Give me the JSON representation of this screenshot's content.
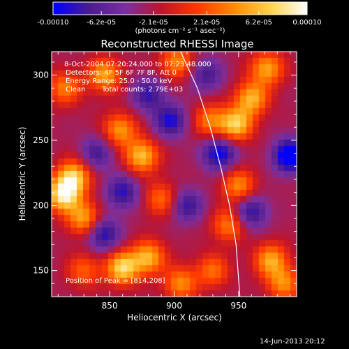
{
  "colorbar": {
    "tick_labels": [
      "-0.00010",
      "-6.2e-05",
      "-2.1e-05",
      "2.1e-05",
      "6.2e-05",
      "0.00010"
    ],
    "tick_values": [
      -0.0001,
      -6.2e-05,
      -2.1e-05,
      2.1e-05,
      6.2e-05,
      0.0001
    ],
    "unit_label": "(photons cm⁻² s⁻¹ asec⁻²)",
    "colors": [
      "#0000ff",
      "#4b1c8f",
      "#7a2fa0",
      "#c0142a",
      "#ff3a00",
      "#ff8c00",
      "#ffd34d",
      "#ffffff"
    ]
  },
  "chart_data": {
    "type": "heatmap",
    "title": "Reconstructed RHESSI Image",
    "xlabel": "Heliocentric X (arcsec)",
    "ylabel": "Heliocentric Y (arcsec)",
    "xlim": [
      805,
      995
    ],
    "ylim": [
      130,
      318
    ],
    "xticks": [
      850,
      900,
      950
    ],
    "yticks": [
      150,
      200,
      250,
      300
    ],
    "xtick_labels": [
      "850",
      "900",
      "950"
    ],
    "ytick_labels": [
      "150",
      "200",
      "250",
      "300"
    ],
    "blobs": [
      {
        "x": 814,
        "y": 208,
        "v": 1.0
      },
      {
        "x": 822,
        "y": 222,
        "v": 0.85
      },
      {
        "x": 830,
        "y": 190,
        "v": 0.7
      },
      {
        "x": 858,
        "y": 258,
        "v": 0.65
      },
      {
        "x": 875,
        "y": 238,
        "v": 0.8
      },
      {
        "x": 846,
        "y": 300,
        "v": 0.7
      },
      {
        "x": 815,
        "y": 290,
        "v": 0.55
      },
      {
        "x": 880,
        "y": 160,
        "v": 0.75
      },
      {
        "x": 860,
        "y": 152,
        "v": 0.9
      },
      {
        "x": 905,
        "y": 140,
        "v": 0.6
      },
      {
        "x": 928,
        "y": 265,
        "v": 0.55
      },
      {
        "x": 948,
        "y": 262,
        "v": 0.85
      },
      {
        "x": 960,
        "y": 282,
        "v": 0.75
      },
      {
        "x": 972,
        "y": 305,
        "v": 0.7
      },
      {
        "x": 950,
        "y": 215,
        "v": 0.6
      },
      {
        "x": 942,
        "y": 185,
        "v": 0.55
      },
      {
        "x": 975,
        "y": 158,
        "v": 0.7
      },
      {
        "x": 985,
        "y": 140,
        "v": 0.6
      },
      {
        "x": 930,
        "y": 150,
        "v": 0.5
      },
      {
        "x": 902,
        "y": 310,
        "v": 0.6
      },
      {
        "x": 830,
        "y": 150,
        "v": 0.45
      },
      {
        "x": 890,
        "y": 205,
        "v": 0.5
      },
      {
        "x": 910,
        "y": 200,
        "v": -0.5
      },
      {
        "x": 897,
        "y": 265,
        "v": -0.6
      },
      {
        "x": 935,
        "y": 240,
        "v": -0.7
      },
      {
        "x": 990,
        "y": 238,
        "v": -0.9
      },
      {
        "x": 860,
        "y": 210,
        "v": -0.55
      },
      {
        "x": 845,
        "y": 178,
        "v": -0.6
      },
      {
        "x": 880,
        "y": 285,
        "v": -0.5
      },
      {
        "x": 960,
        "y": 195,
        "v": -0.55
      },
      {
        "x": 925,
        "y": 300,
        "v": -0.45
      },
      {
        "x": 840,
        "y": 240,
        "v": -0.45
      }
    ],
    "limb_curve": {
      "x": [
        905,
        918,
        928,
        936,
        943,
        948,
        951
      ],
      "y": [
        318,
        290,
        260,
        230,
        200,
        170,
        130
      ]
    },
    "peak": {
      "x": 814,
      "y": 208
    }
  },
  "annotations": {
    "time_range": "8-Oct-2004 07:20:24.000 to 07:23:48.000",
    "detectors": "Detectors: 4F 5F 6F 7F 8F, Att 0",
    "energy": "Energy Range: 25.0 - 50.0 keV",
    "method": "Clean",
    "counts": "Total counts: 2.79E+03",
    "peak_label": "Position of Peak = [814,208]"
  },
  "timestamp": "14-Jun-2013 20:12"
}
